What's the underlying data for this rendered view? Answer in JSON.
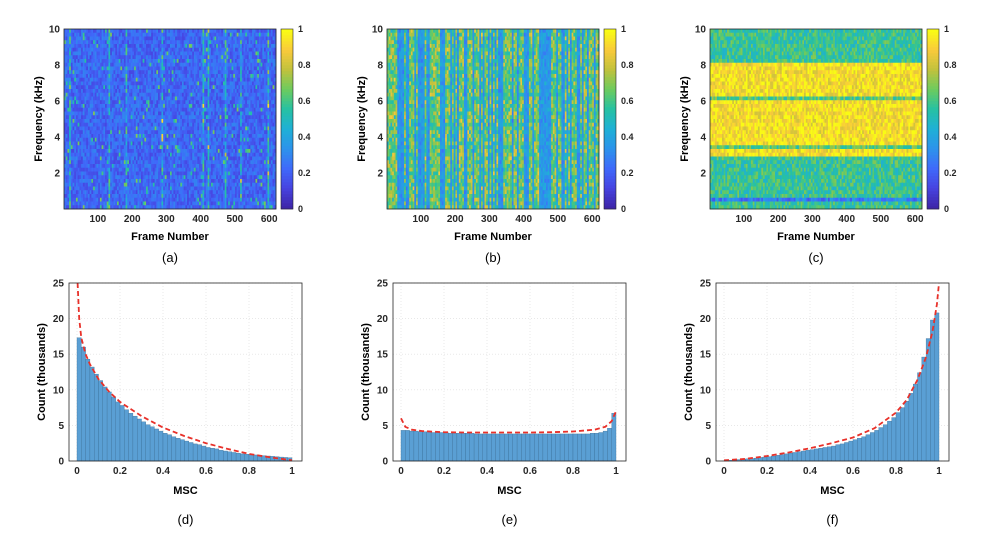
{
  "colorbar": {
    "colors": [
      "#3e26a8",
      "#4743e0",
      "#3f6afa",
      "#2c93eb",
      "#1fb0d6",
      "#26c1a3",
      "#6ccb5e",
      "#c0c23d",
      "#f9ca3b",
      "#f9fb15"
    ],
    "ticks": [
      "0",
      "0.2",
      "0.4",
      "0.6",
      "0.8",
      "1"
    ]
  },
  "chart_data": [
    {
      "type": "heatmap",
      "caption": "(a)",
      "xlabel": "Frame Number",
      "ylabel": "Frequency (kHz)",
      "xlim": [
        1,
        620
      ],
      "ylim": [
        0,
        10
      ],
      "xticks": [
        "100",
        "200",
        "300",
        "400",
        "500",
        "600"
      ],
      "yticks": [
        "2",
        "4",
        "6",
        "8",
        "10"
      ],
      "clim": [
        0,
        1
      ],
      "mean_level": 0.22
    },
    {
      "type": "heatmap",
      "caption": "(b)",
      "xlabel": "Frame Number",
      "ylabel": "Frequency (kHz)",
      "xlim": [
        1,
        620
      ],
      "ylim": [
        0,
        10
      ],
      "xticks": [
        "100",
        "200",
        "300",
        "400",
        "500",
        "600"
      ],
      "yticks": [
        "2",
        "4",
        "6",
        "8",
        "10"
      ],
      "clim": [
        0,
        1
      ],
      "mean_level": 0.5
    },
    {
      "type": "heatmap",
      "caption": "(c)",
      "xlabel": "Frame Number",
      "ylabel": "Frequency (kHz)",
      "xlim": [
        1,
        620
      ],
      "ylim": [
        0,
        10
      ],
      "xticks": [
        "100",
        "200",
        "300",
        "400",
        "500",
        "600"
      ],
      "yticks": [
        "2",
        "4",
        "6",
        "8",
        "10"
      ],
      "clim": [
        0,
        1
      ],
      "mean_level": 0.85
    },
    {
      "type": "bar",
      "caption": "(d)",
      "xlabel": "MSC",
      "ylabel": "Count (thousands)",
      "xlim": [
        0,
        1
      ],
      "ylim": [
        0,
        25
      ],
      "xticks": [
        "0",
        "0.2",
        "0.4",
        "0.6",
        "0.8",
        "1"
      ],
      "yticks": [
        "0",
        "5",
        "10",
        "15",
        "20",
        "25"
      ],
      "grid": true,
      "bin_width": 0.02,
      "bar_color": "#5a9fd4",
      "fit_color": "#e8312a",
      "values": [
        17.3,
        16.0,
        14.3,
        13.2,
        12.2,
        11.3,
        10.4,
        9.7,
        9.0,
        8.3,
        7.8,
        7.2,
        6.7,
        6.3,
        5.9,
        5.5,
        5.1,
        4.8,
        4.5,
        4.2,
        3.9,
        3.7,
        3.4,
        3.2,
        3.0,
        2.8,
        2.6,
        2.4,
        2.3,
        2.1,
        1.9,
        1.8,
        1.7,
        1.5,
        1.4,
        1.3,
        1.2,
        1.1,
        1.0,
        0.95,
        0.9,
        0.85,
        0.8,
        0.75,
        0.7,
        0.65,
        0.6,
        0.55,
        0.5,
        0.45
      ],
      "fit": {
        "x": [
          0.003,
          0.01,
          0.02,
          0.04,
          0.06,
          0.1,
          0.15,
          0.2,
          0.3,
          0.4,
          0.5,
          0.6,
          0.7,
          0.8,
          0.9,
          1.0
        ],
        "y": [
          25,
          20,
          17.3,
          15.0,
          13.6,
          11.5,
          9.7,
          8.3,
          6.3,
          4.7,
          3.5,
          2.5,
          1.7,
          1.0,
          0.5,
          0.1
        ]
      }
    },
    {
      "type": "bar",
      "caption": "(e)",
      "xlabel": "MSC",
      "ylabel": "Count (thousands)",
      "xlim": [
        0,
        1
      ],
      "ylim": [
        0,
        25
      ],
      "xticks": [
        "0",
        "0.2",
        "0.4",
        "0.6",
        "0.8",
        "1"
      ],
      "yticks": [
        "0",
        "5",
        "10",
        "15",
        "20",
        "25"
      ],
      "grid": true,
      "bin_width": 0.02,
      "bar_color": "#5a9fd4",
      "fit_color": "#e8312a",
      "values": [
        4.3,
        4.3,
        4.2,
        4.2,
        4.1,
        4.1,
        4.1,
        4.0,
        4.0,
        4.0,
        4.0,
        3.9,
        3.9,
        3.9,
        3.9,
        3.9,
        3.9,
        3.8,
        3.8,
        3.8,
        3.8,
        3.8,
        3.8,
        3.8,
        3.8,
        3.8,
        3.8,
        3.8,
        3.8,
        3.8,
        3.8,
        3.8,
        3.8,
        3.8,
        3.8,
        3.8,
        3.8,
        3.8,
        3.8,
        3.8,
        3.8,
        3.8,
        3.8,
        3.8,
        3.9,
        3.9,
        4.0,
        4.2,
        4.6,
        6.7
      ],
      "fit": {
        "x": [
          0.0,
          0.02,
          0.05,
          0.1,
          0.2,
          0.3,
          0.4,
          0.5,
          0.6,
          0.7,
          0.8,
          0.9,
          0.95,
          0.98,
          1.0
        ],
        "y": [
          6.0,
          4.8,
          4.4,
          4.2,
          4.05,
          4.0,
          4.0,
          4.0,
          4.0,
          4.05,
          4.15,
          4.4,
          4.8,
          5.6,
          7.0
        ]
      }
    },
    {
      "type": "bar",
      "caption": "(f)",
      "xlabel": "MSC",
      "ylabel": "Count (thousands)",
      "xlim": [
        0,
        1
      ],
      "ylim": [
        0,
        25
      ],
      "xticks": [
        "0",
        "0.2",
        "0.4",
        "0.6",
        "0.8",
        "1"
      ],
      "yticks": [
        "0",
        "5",
        "10",
        "15",
        "20",
        "25"
      ],
      "grid": true,
      "bin_width": 0.02,
      "bar_color": "#5a9fd4",
      "fit_color": "#e8312a",
      "values": [
        0.05,
        0.1,
        0.15,
        0.2,
        0.25,
        0.3,
        0.35,
        0.4,
        0.5,
        0.55,
        0.6,
        0.7,
        0.8,
        0.9,
        1.0,
        1.1,
        1.2,
        1.3,
        1.4,
        1.5,
        1.6,
        1.7,
        1.8,
        1.9,
        2.0,
        2.1,
        2.3,
        2.4,
        2.6,
        2.8,
        3.0,
        3.2,
        3.4,
        3.7,
        4.0,
        4.3,
        4.7,
        5.1,
        5.6,
        6.1,
        6.8,
        7.5,
        8.4,
        9.5,
        10.8,
        12.4,
        14.6,
        17.2,
        19.8,
        20.8
      ],
      "fit": {
        "x": [
          0.0,
          0.1,
          0.2,
          0.3,
          0.4,
          0.5,
          0.6,
          0.7,
          0.8,
          0.85,
          0.9,
          0.94,
          0.97,
          0.99,
          1.0
        ],
        "y": [
          0.1,
          0.3,
          0.7,
          1.2,
          1.8,
          2.5,
          3.3,
          4.6,
          6.8,
          8.6,
          11.4,
          14.6,
          18.2,
          22.0,
          25
        ]
      }
    }
  ]
}
